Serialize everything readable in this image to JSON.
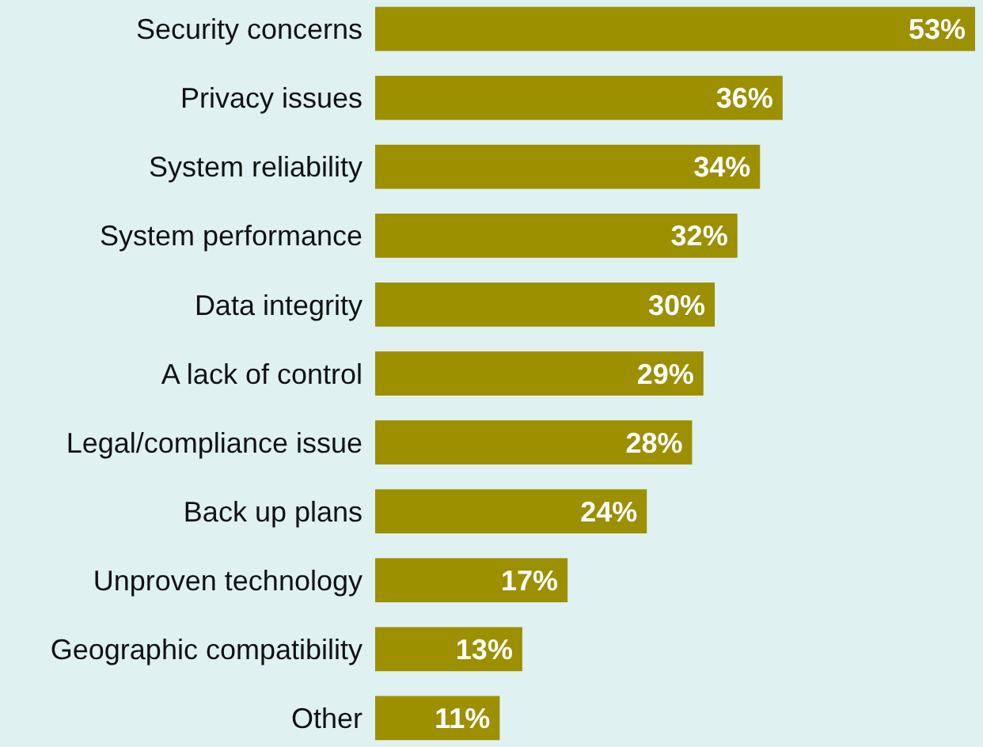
{
  "chart_data": {
    "type": "bar",
    "orientation": "horizontal",
    "categories": [
      "Security concerns",
      "Privacy issues",
      "System reliability",
      "System performance",
      "Data integrity",
      "A lack of control",
      "Legal/compliance issue",
      "Back up plans",
      "Unproven technology",
      "Geographic compatibility",
      "Other"
    ],
    "values": [
      53,
      36,
      34,
      32,
      30,
      29,
      28,
      24,
      17,
      13,
      11
    ],
    "value_labels": [
      "53%",
      "36%",
      "34%",
      "32%",
      "30%",
      "29%",
      "28%",
      "24%",
      "17%",
      "13%",
      "11%"
    ],
    "color": "#9c8f00"
  }
}
